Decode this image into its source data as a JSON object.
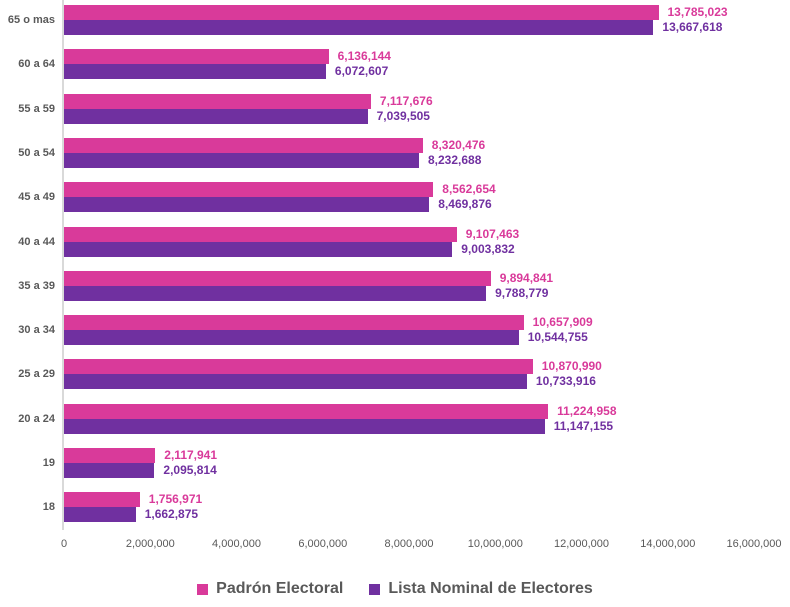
{
  "chart_data": {
    "type": "bar",
    "orientation": "horizontal",
    "title": "",
    "xlabel": "",
    "ylabel": "",
    "grid": false,
    "legend_position": "bottom",
    "categories": [
      "65 o mas",
      "60 a 64",
      "55 a 59",
      "50 a 54",
      "45 a 49",
      "40 a 44",
      "35 a 39",
      "30 a 34",
      "25 a 29",
      "20 a 24",
      "19",
      "18"
    ],
    "series": [
      {
        "name": "Padrón Electoral",
        "color": "#d93a9a",
        "values": [
          13785023,
          6136144,
          7117676,
          8320476,
          8562654,
          9107463,
          9894841,
          10657909,
          10870990,
          11224958,
          2117941,
          1756971
        ],
        "labels": [
          "13,785,023",
          "6,136,144",
          "7,117,676",
          "8,320,476",
          "8,562,654",
          "9,107,463",
          "9,894,841",
          "10,657,909",
          "10,870,990",
          "11,224,958",
          "2,117,941",
          "1,756,971"
        ]
      },
      {
        "name": "Lista Nominal de Electores",
        "color": "#7030a0",
        "values": [
          13667618,
          6072607,
          7039505,
          8232688,
          8469876,
          9003832,
          9788779,
          10544755,
          10733916,
          11147155,
          2095814,
          1662875
        ],
        "labels": [
          "13,667,618",
          "6,072,607",
          "7,039,505",
          "8,232,688",
          "8,469,876",
          "9,003,832",
          "9,788,779",
          "10,544,755",
          "10,733,916",
          "11,147,155",
          "2,095,814",
          "1,662,875"
        ]
      }
    ],
    "xlim": [
      0,
      16000000
    ],
    "x_tick_values": [
      0,
      2000000,
      4000000,
      6000000,
      8000000,
      10000000,
      12000000,
      14000000,
      16000000
    ],
    "x_tick_labels": [
      "0",
      "2,000,000",
      "4,000,000",
      "6,000,000",
      "8,000,000",
      "10,000,000",
      "12,000,000",
      "14,000,000",
      "16,000,000"
    ]
  },
  "colors": {
    "axis_line": "#d9d9d9",
    "tick_text": "#595959",
    "category_text": "#595959",
    "legend_text": "#595959"
  }
}
